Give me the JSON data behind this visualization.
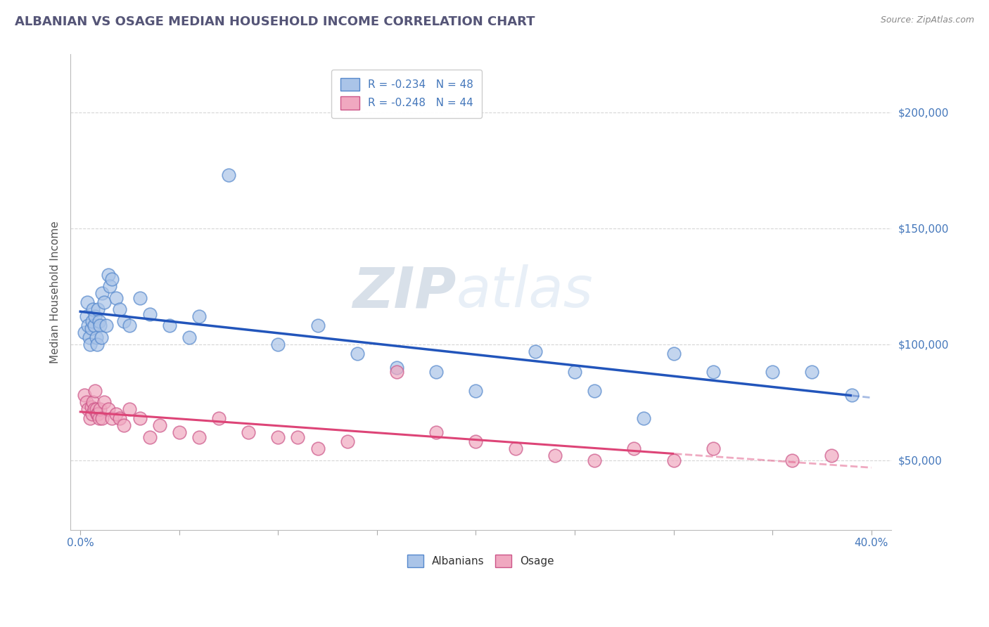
{
  "title": "ALBANIAN VS OSAGE MEDIAN HOUSEHOLD INCOME CORRELATION CHART",
  "source": "Source: ZipAtlas.com",
  "ylabel": "Median Household Income",
  "albanian_color": "#aac4e8",
  "albanian_edge": "#5588cc",
  "osage_color": "#f0a8c0",
  "osage_edge": "#cc5588",
  "line_blue": "#2255bb",
  "line_pink": "#dd4477",
  "watermark_zip": "ZIP",
  "watermark_atlas": "atlas",
  "alb_x": [
    0.2,
    0.3,
    0.35,
    0.4,
    0.45,
    0.5,
    0.55,
    0.6,
    0.65,
    0.7,
    0.75,
    0.8,
    0.85,
    0.9,
    0.95,
    1.0,
    1.05,
    1.1,
    1.2,
    1.3,
    1.4,
    1.5,
    1.6,
    1.8,
    2.0,
    2.2,
    2.5,
    3.0,
    3.5,
    4.5,
    5.5,
    6.0,
    7.5,
    10.0,
    12.0,
    14.0,
    16.0,
    18.0,
    20.0,
    23.0,
    25.0,
    26.0,
    28.5,
    30.0,
    32.0,
    35.0,
    37.0,
    39.0
  ],
  "alb_y": [
    105000,
    112000,
    118000,
    108000,
    103000,
    100000,
    107000,
    110000,
    115000,
    108000,
    112000,
    103000,
    100000,
    115000,
    110000,
    108000,
    103000,
    122000,
    118000,
    108000,
    130000,
    125000,
    128000,
    120000,
    115000,
    110000,
    108000,
    120000,
    113000,
    108000,
    103000,
    112000,
    173000,
    100000,
    108000,
    96000,
    90000,
    88000,
    80000,
    97000,
    88000,
    80000,
    68000,
    96000,
    88000,
    88000,
    88000,
    78000
  ],
  "osa_x": [
    0.2,
    0.3,
    0.4,
    0.5,
    0.55,
    0.6,
    0.65,
    0.7,
    0.75,
    0.8,
    0.85,
    0.9,
    0.95,
    1.0,
    1.1,
    1.2,
    1.4,
    1.6,
    1.8,
    2.0,
    2.2,
    2.5,
    3.0,
    3.5,
    4.0,
    5.0,
    6.0,
    7.0,
    8.5,
    10.0,
    11.0,
    12.0,
    13.5,
    16.0,
    18.0,
    20.0,
    22.0,
    24.0,
    26.0,
    28.0,
    30.0,
    32.0,
    36.0,
    38.0
  ],
  "osa_y": [
    78000,
    75000,
    72000,
    68000,
    73000,
    70000,
    75000,
    72000,
    80000,
    72000,
    70000,
    70000,
    68000,
    72000,
    68000,
    75000,
    72000,
    68000,
    70000,
    68000,
    65000,
    72000,
    68000,
    60000,
    65000,
    62000,
    60000,
    68000,
    62000,
    60000,
    60000,
    55000,
    58000,
    88000,
    62000,
    58000,
    55000,
    52000,
    50000,
    55000,
    50000,
    55000,
    50000,
    52000
  ]
}
